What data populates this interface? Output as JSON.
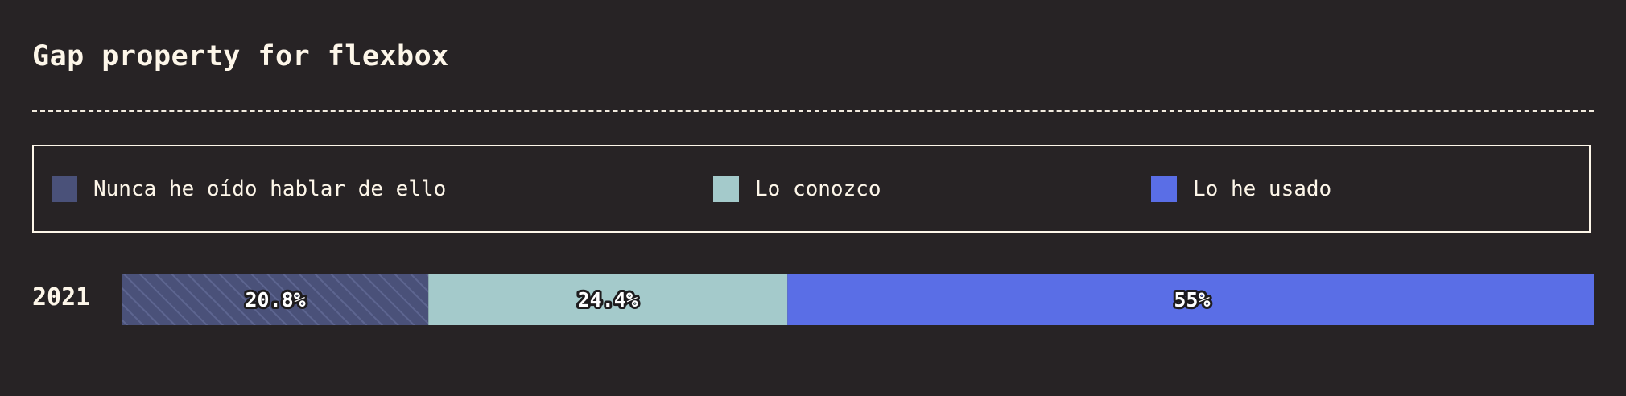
{
  "chart_data": {
    "type": "bar",
    "orientation": "horizontal",
    "stacked": true,
    "title": "Gap property for flexbox",
    "categories": [
      "2021"
    ],
    "series": [
      {
        "name": "Nunca he oído hablar de ello",
        "values": [
          20.8
        ],
        "label": "20.8%",
        "color": "#4a5179",
        "pattern": "diagonal-hatch"
      },
      {
        "name": "Lo conozco",
        "values": [
          24.4
        ],
        "label": "24.4%",
        "color": "#a4cacb"
      },
      {
        "name": "Lo he usado",
        "values": [
          55
        ],
        "label": "55%",
        "color": "#5a6ee6"
      }
    ],
    "xlim": [
      0,
      100
    ],
    "legend_position": "top",
    "grid": false
  },
  "colors": {
    "background": "#272325",
    "foreground": "#fdf6e9"
  }
}
